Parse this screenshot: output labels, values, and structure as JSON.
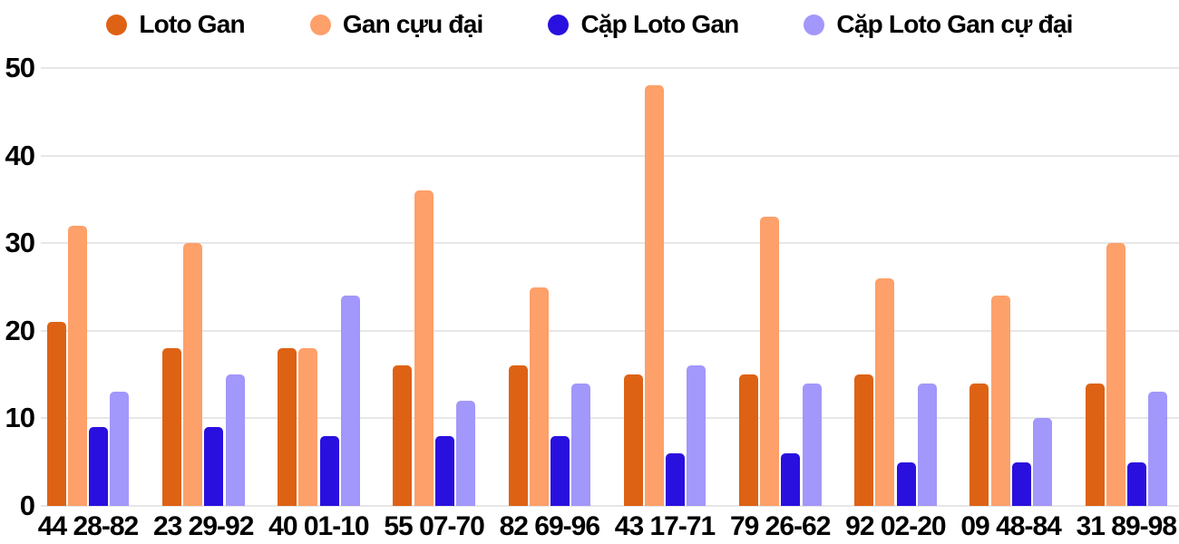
{
  "chart_data": {
    "type": "bar",
    "title": "",
    "xlabel": "",
    "ylabel": "",
    "categories": [
      "44 28-82",
      "23 29-92",
      "40 01-10",
      "55 07-70",
      "82 69-96",
      "43 17-71",
      "79 26-62",
      "92 02-20",
      "09 48-84",
      "31 89-98"
    ],
    "series": [
      {
        "name": "Loto Gan",
        "color": "#DE6214",
        "values": [
          21,
          18,
          18,
          16,
          16,
          15,
          15,
          15,
          14,
          14
        ]
      },
      {
        "name": "Gan cựu đại",
        "color": "#FDA06A",
        "values": [
          32,
          30,
          18,
          36,
          25,
          48,
          33,
          26,
          24,
          30
        ]
      },
      {
        "name": "Cặp Loto Gan",
        "color": "#2A10DF",
        "values": [
          9,
          9,
          8,
          8,
          8,
          6,
          6,
          5,
          5,
          5
        ]
      },
      {
        "name": "Cặp Loto Gan cự đại",
        "color": "#A297FA",
        "values": [
          13,
          15,
          24,
          12,
          14,
          16,
          14,
          14,
          10,
          13
        ]
      }
    ],
    "ylim": [
      0,
      50
    ],
    "yticks": [
      0,
      10,
      20,
      30,
      40,
      50
    ],
    "grid": true,
    "legend_position": "top",
    "colors": {
      "background": "#ffffff",
      "gridline": "#e7e7e7",
      "text": "#000000"
    }
  }
}
